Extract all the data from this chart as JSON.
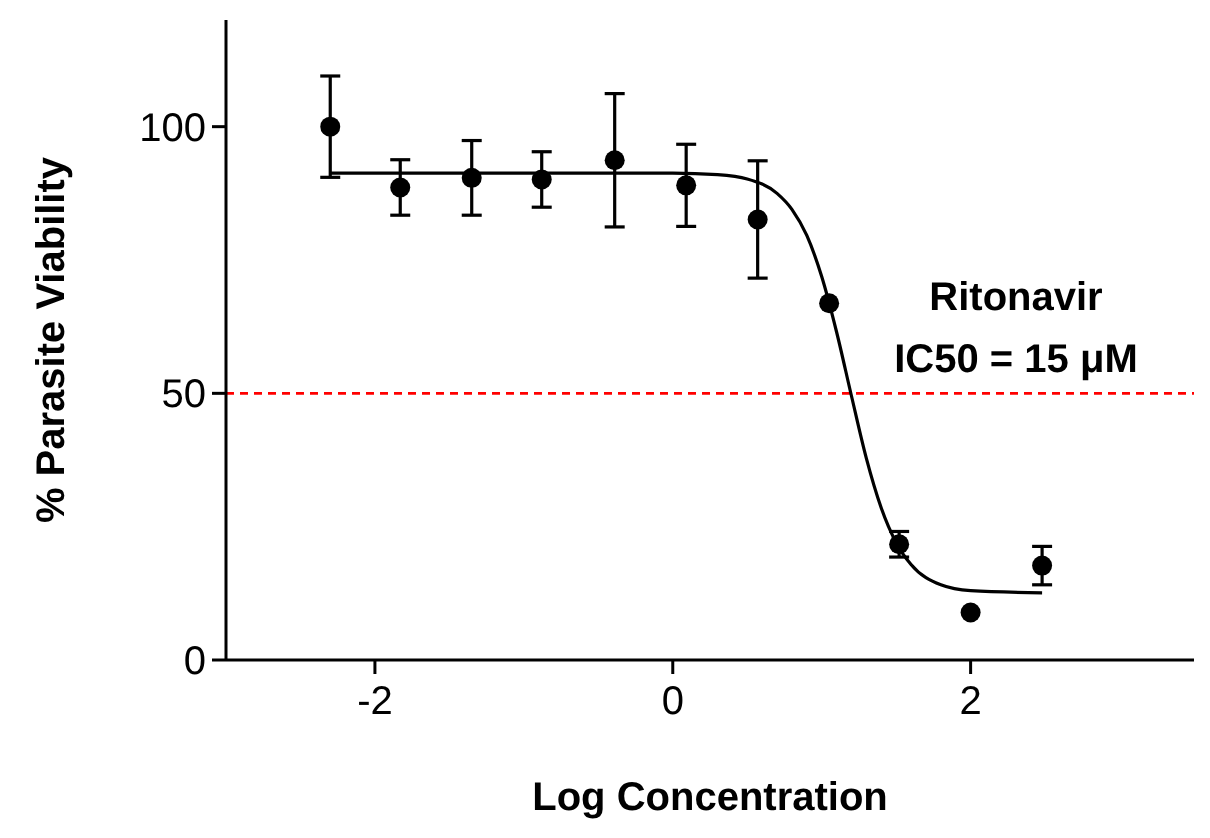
{
  "chart_data": {
    "type": "scatter",
    "xlabel": "Log Concentration",
    "ylabel": "% Parasite Viability",
    "xlim": [
      -3,
      3.5
    ],
    "xticks": [
      -2,
      0,
      2
    ],
    "ylim": [
      0,
      120
    ],
    "yticks": [
      0,
      50,
      100
    ],
    "grid": false,
    "annotations": [
      "Ritonavir",
      "IC50 = 15 μM"
    ],
    "ref_lines": [
      {
        "axis": "y",
        "value": 50,
        "color": "#ff0000",
        "line_style": "dashed"
      }
    ],
    "series": [
      {
        "color": "#000000",
        "marker": "circle",
        "x": [
          -2.3,
          -1.83,
          -1.35,
          -0.88,
          -0.39,
          0.09,
          0.57,
          1.05,
          1.52,
          2.0,
          2.48
        ],
        "values": [
          100,
          88.6,
          90.4,
          90.1,
          93.7,
          89,
          82.6,
          66.9,
          21.7,
          8.9,
          17.7
        ],
        "errors": [
          9.5,
          5.2,
          7,
          5.2,
          12.5,
          7.7,
          11,
          null,
          2.4,
          null,
          3.6
        ]
      },
      {
        "type": "line",
        "color": "#000000",
        "marker": "none",
        "line_style": "solid",
        "x": [
          -2.3,
          0,
          0.3,
          0.5,
          0.7,
          0.8,
          0.9,
          1.0,
          1.1,
          1.2,
          1.3,
          1.4,
          1.5,
          1.6,
          1.8,
          2.0,
          2.48
        ],
        "values": [
          91.3,
          91.3,
          91.0,
          90.2,
          87.5,
          84.5,
          79.6,
          71.9,
          61.5,
          49.5,
          37.8,
          28.5,
          22.0,
          17.9,
          14.1,
          13.0,
          12.6
        ]
      }
    ]
  }
}
